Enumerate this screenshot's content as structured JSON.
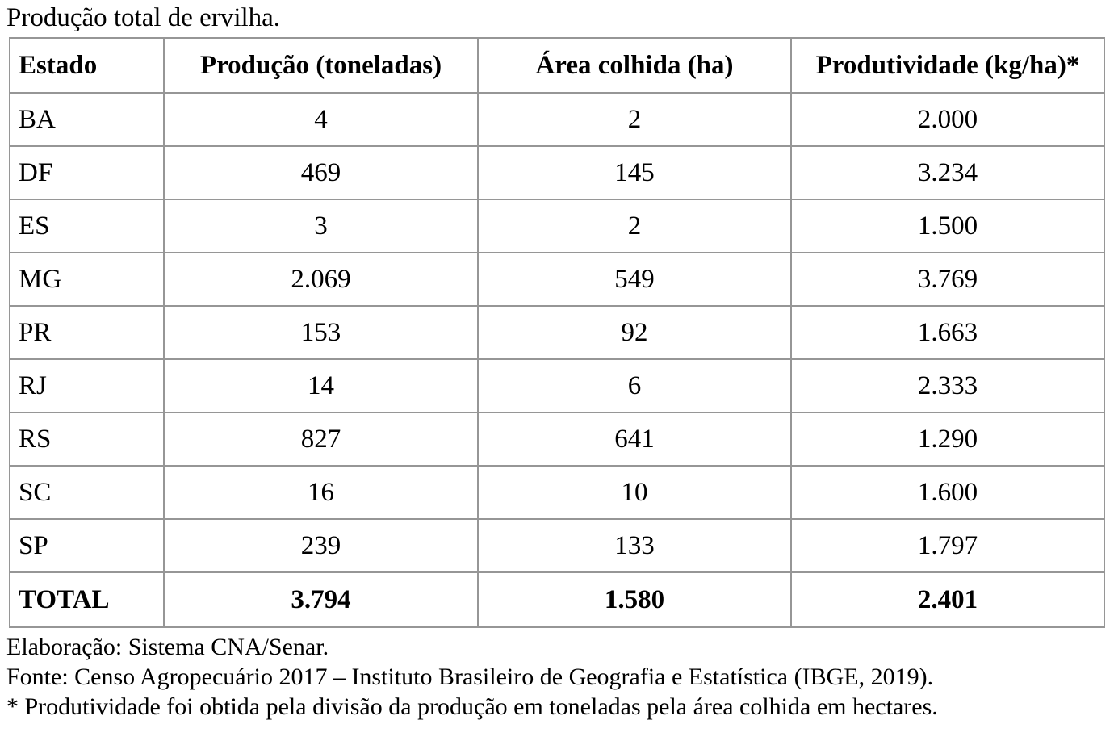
{
  "title": "Produção total de ervilha.",
  "table": {
    "columns": [
      "Estado",
      "Produção (toneladas)",
      "Área colhida (ha)",
      "Produtividade (kg/ha)*"
    ],
    "rows": [
      {
        "estado": "BA",
        "producao": "4",
        "area": "2",
        "produtividade": "2.000"
      },
      {
        "estado": "DF",
        "producao": "469",
        "area": "145",
        "produtividade": "3.234"
      },
      {
        "estado": "ES",
        "producao": "3",
        "area": "2",
        "produtividade": "1.500"
      },
      {
        "estado": "MG",
        "producao": "2.069",
        "area": "549",
        "produtividade": "3.769"
      },
      {
        "estado": "PR",
        "producao": "153",
        "area": "92",
        "produtividade": "1.663"
      },
      {
        "estado": "RJ",
        "producao": "14",
        "area": "6",
        "produtividade": "2.333"
      },
      {
        "estado": "RS",
        "producao": "827",
        "area": "641",
        "produtividade": "1.290"
      },
      {
        "estado": "SC",
        "producao": "16",
        "area": "10",
        "produtividade": "1.600"
      },
      {
        "estado": "SP",
        "producao": "239",
        "area": "133",
        "produtividade": "1.797"
      }
    ],
    "total_row": {
      "estado": "TOTAL",
      "producao": "3.794",
      "area": "1.580",
      "produtividade": "2.401"
    }
  },
  "footnotes": {
    "elaboracao": "Elaboração: Sistema CNA/Senar.",
    "fonte": "Fonte: Censo Agropecuário 2017 – Instituto Brasileiro de Geografia e Estatística (IBGE, 2019).",
    "nota_produtividade": "* Produtividade foi obtida pela divisão da produção em toneladas pela área colhida em hectares."
  },
  "colors": {
    "border": "#969696",
    "text": "#000000",
    "background": "#ffffff"
  }
}
